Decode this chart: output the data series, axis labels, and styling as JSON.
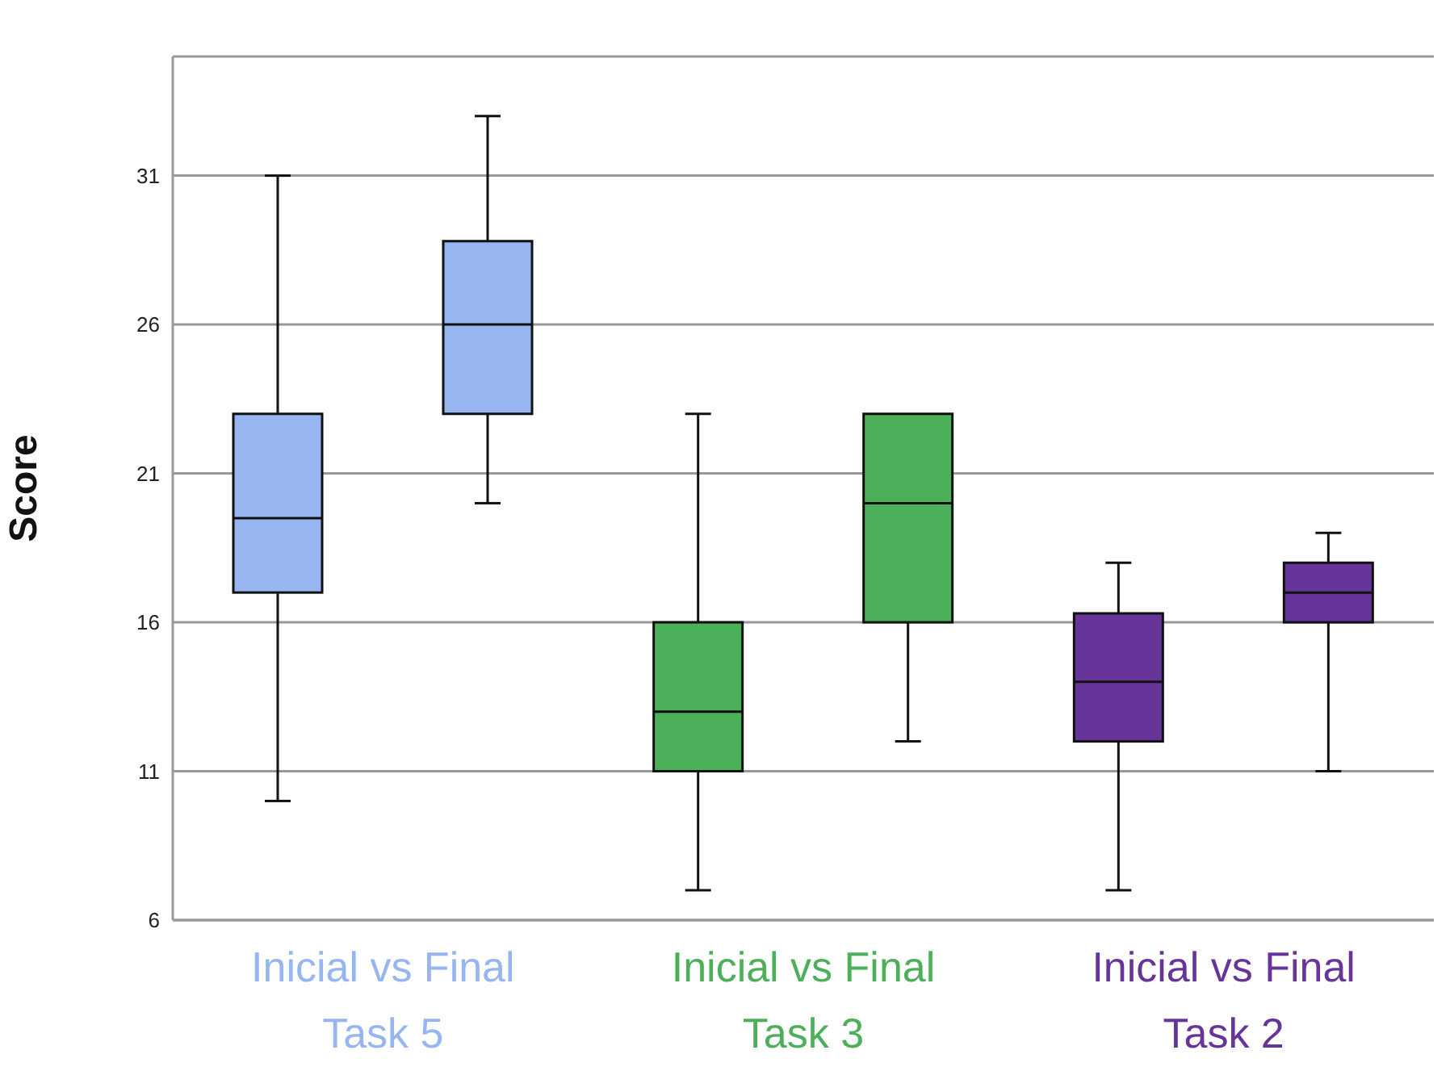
{
  "chart_data": {
    "type": "box",
    "ylabel": "Score",
    "categories": [
      "Inicial vs Final Task 5",
      "Inicial vs Final Task 3",
      "Inicial vs Final Task 2"
    ],
    "series": [
      {
        "colors": [
          "#97b5f1",
          "#4caf5a",
          "#67359a"
        ],
        "boxes": [
          {
            "low": 10,
            "q1": 17,
            "median": 19.5,
            "q3": 23,
            "high": 31
          },
          {
            "low": 7,
            "q1": 11,
            "median": 13,
            "q3": 16,
            "high": 23
          },
          {
            "low": 7,
            "q1": 12,
            "median": 14,
            "q3": 16.3,
            "high": 18
          }
        ]
      },
      {
        "colors": [
          "#97b5f1",
          "#4caf5a",
          "#67359a"
        ],
        "boxes": [
          {
            "low": 20,
            "q1": 23,
            "median": 26,
            "q3": 28.8,
            "high": 33
          },
          {
            "low": 12,
            "q1": 16,
            "median": 20,
            "q3": 23,
            "high": 23
          },
          {
            "low": 11,
            "q1": 16,
            "median": 17,
            "q3": 18,
            "high": 19
          }
        ]
      }
    ],
    "ylim": [
      6,
      35
    ],
    "yticks": [
      6,
      11,
      16,
      21,
      26,
      31
    ],
    "grid": "y",
    "legend": false
  }
}
